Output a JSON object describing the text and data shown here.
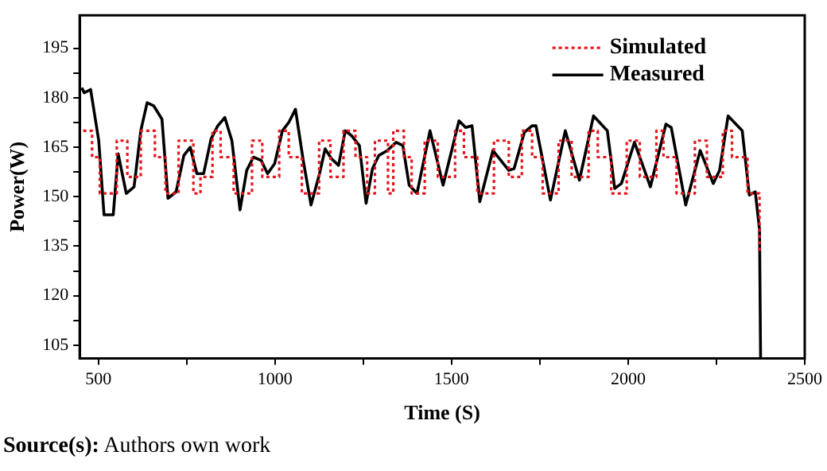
{
  "chart_data": {
    "type": "line",
    "xlabel": "Time (S)",
    "ylabel": "Power(W)",
    "annotations": [
      "Source(s): Authors own work"
    ],
    "xlim": [
      447,
      2500
    ],
    "ylim": [
      101,
      205
    ],
    "xticks": [
      500,
      {
        "value": 750,
        "label": null
      },
      1000,
      {
        "value": 1250,
        "label": null
      },
      1500,
      {
        "value": 1750,
        "label": null
      },
      2000,
      {
        "value": 2250,
        "label": null
      },
      2500
    ],
    "yticks": [
      105,
      {
        "value": 112.5,
        "label": null
      },
      120,
      {
        "value": 127.5,
        "label": null
      },
      135,
      {
        "value": 142.5,
        "label": null
      },
      150,
      {
        "value": 157.5,
        "label": null
      },
      165,
      {
        "value": 172.5,
        "label": null
      },
      180,
      {
        "value": 187.5,
        "label": null
      },
      195
    ],
    "grid": false,
    "legend": "top right",
    "series": [
      {
        "name": "Simulated",
        "type": "step",
        "color": "#e8141c",
        "line_style": "dotted",
        "x": [
          457,
          482,
          504,
          552,
          582,
          620,
          660,
          690,
          727,
          769,
          789,
          823,
          846,
          883,
          935,
          964,
          1012,
          1039,
          1076,
          1125,
          1157,
          1194,
          1228,
          1261,
          1283,
          1320,
          1335,
          1365,
          1387,
          1424,
          1461,
          1510,
          1535,
          1573,
          1620,
          1662,
          1699,
          1728,
          1758,
          1803,
          1840,
          1888,
          1914,
          1952,
          1996,
          2033,
          2080,
          2100,
          2137,
          2189,
          2223,
          2268,
          2294,
          2338,
          2372
        ],
        "values": [
          170,
          162,
          151,
          167,
          156,
          170,
          162,
          151,
          167,
          151,
          156,
          170,
          162,
          151,
          167,
          156,
          170,
          162,
          151,
          167,
          156,
          170,
          162,
          151,
          167,
          151,
          170,
          162,
          151,
          167,
          156,
          170,
          162,
          151,
          167,
          156,
          170,
          162,
          151,
          167,
          156,
          170,
          162,
          151,
          167,
          156,
          170,
          162,
          151,
          167,
          156,
          170,
          162,
          151,
          133
        ]
      },
      {
        "name": "Measured",
        "color": "#000000",
        "line_style": "solid",
        "x": [
          453,
          460,
          478,
          501,
          516,
          542,
          556,
          579,
          601,
          620,
          638,
          657,
          680,
          697,
          720,
          742,
          760,
          779,
          798,
          819,
          838,
          858,
          878,
          901,
          920,
          939,
          961,
          979,
          999,
          1021,
          1039,
          1058,
          1080,
          1102,
          1125,
          1142,
          1160,
          1180,
          1199,
          1217,
          1239,
          1258,
          1276,
          1294,
          1318,
          1343,
          1362,
          1380,
          1402,
          1439,
          1476,
          1521,
          1540,
          1558,
          1580,
          1617,
          1662,
          1677,
          1706,
          1728,
          1739,
          1780,
          1822,
          1862,
          1902,
          1941,
          1962,
          1981,
          2018,
          2063,
          2107,
          2122,
          2163,
          2204,
          2241,
          2259,
          2283,
          2323,
          2343,
          2360,
          2372,
          2375
        ],
        "values": [
          183,
          181.5,
          182.5,
          167,
          144.5,
          144.5,
          163,
          151,
          153,
          170,
          178.5,
          177.5,
          173.5,
          149.5,
          151.5,
          162.5,
          165,
          157,
          157,
          167.5,
          171.5,
          174,
          167,
          146,
          158,
          162,
          161,
          157,
          160,
          170,
          172.5,
          176.5,
          161,
          147.5,
          156.5,
          164.5,
          161.5,
          159.5,
          170,
          168.5,
          165.5,
          148,
          158.5,
          162.5,
          164,
          166.5,
          165.5,
          153.5,
          151,
          170,
          153.5,
          173,
          171,
          171.5,
          148.5,
          164,
          158,
          158.5,
          169.5,
          171.5,
          171.5,
          149,
          170,
          155,
          174.5,
          170,
          152.5,
          154,
          166.5,
          153,
          172,
          171,
          147.5,
          164,
          154,
          158,
          174.5,
          170,
          150.5,
          151.5,
          140,
          101
        ]
      }
    ]
  }
}
